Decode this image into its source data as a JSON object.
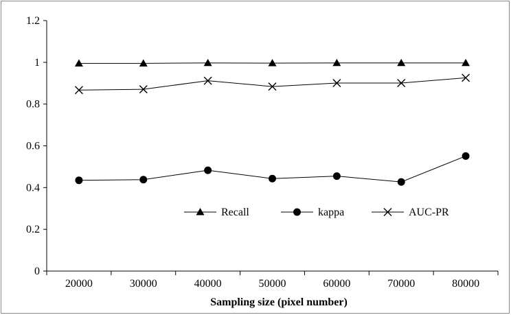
{
  "chart_data": {
    "type": "line",
    "title": "",
    "xlabel": "Sampling size (pixel number)",
    "ylabel": "",
    "categories": [
      "20000",
      "30000",
      "40000",
      "50000",
      "60000",
      "70000",
      "80000"
    ],
    "ylim": [
      0,
      1.2
    ],
    "yticks": [
      "0",
      "0.2",
      "0.4",
      "0.6",
      "0.8",
      "1",
      "1.2"
    ],
    "grid": false,
    "legend_position": "lower-right",
    "series": [
      {
        "name": "Recall",
        "marker": "triangle",
        "values": [
          0.995,
          0.995,
          0.997,
          0.996,
          0.997,
          0.997,
          0.997
        ]
      },
      {
        "name": "kappa",
        "marker": "circle",
        "values": [
          0.435,
          0.438,
          0.483,
          0.443,
          0.455,
          0.427,
          0.551
        ]
      },
      {
        "name": "AUC-PR",
        "marker": "x",
        "values": [
          0.867,
          0.871,
          0.912,
          0.884,
          0.901,
          0.901,
          0.926
        ]
      }
    ],
    "colors": {
      "line": "#000000",
      "axis": "#000000",
      "frame": "#868686",
      "background": "#ffffff"
    }
  }
}
